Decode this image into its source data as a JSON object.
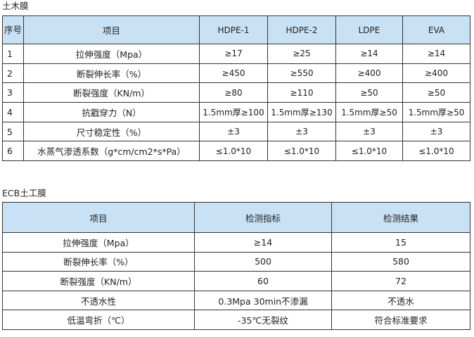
{
  "section1": {
    "title": "土木膜",
    "table": {
      "header": [
        "序号",
        "项目",
        "HDPE-1",
        "HDPE-2",
        "LDPE",
        "EVA"
      ],
      "rows": [
        [
          "1",
          "拉伸强度（Mpa）",
          "≥17",
          "≥25",
          "≥14",
          "≥14"
        ],
        [
          "2",
          "断裂伸长率（%）",
          "≥450",
          "≥550",
          "≥400",
          "≥400"
        ],
        [
          "3",
          "断裂强度（KN/m）",
          "≥80",
          "≥110",
          "≥50",
          "≥50"
        ],
        [
          "4",
          "抗戳穿力（N）",
          "1.5mm厚≥100",
          "1.5mm厚≥130",
          "1.5mm厚≥50",
          "1.5mm厚≥50"
        ],
        [
          "5",
          "尺寸稳定性（%）",
          "±3",
          "±3",
          "±3",
          "±3"
        ],
        [
          "6",
          "水蒸气渗透系数（g*cm/cm2*s*Pa）",
          "≤1.0*10",
          "≤1.0*10",
          "≤1.0*10",
          "≤1.0*10"
        ]
      ]
    }
  },
  "section2": {
    "title": "ECB土工膜",
    "table": {
      "header": [
        "项目",
        "检测指标",
        "检测结果"
      ],
      "rows": [
        [
          "拉伸强度（Mpa）",
          "≥14",
          "15"
        ],
        [
          "断裂伸长率（%）",
          "500",
          "580"
        ],
        [
          "断裂强度（KN/m）",
          "60",
          "72"
        ],
        [
          "不透水性",
          "0.3Mpa 30min不渗漏",
          "不透水"
        ],
        [
          "低温弯折（℃）",
          "-35℃无裂纹",
          "符合标准要求"
        ]
      ]
    }
  }
}
